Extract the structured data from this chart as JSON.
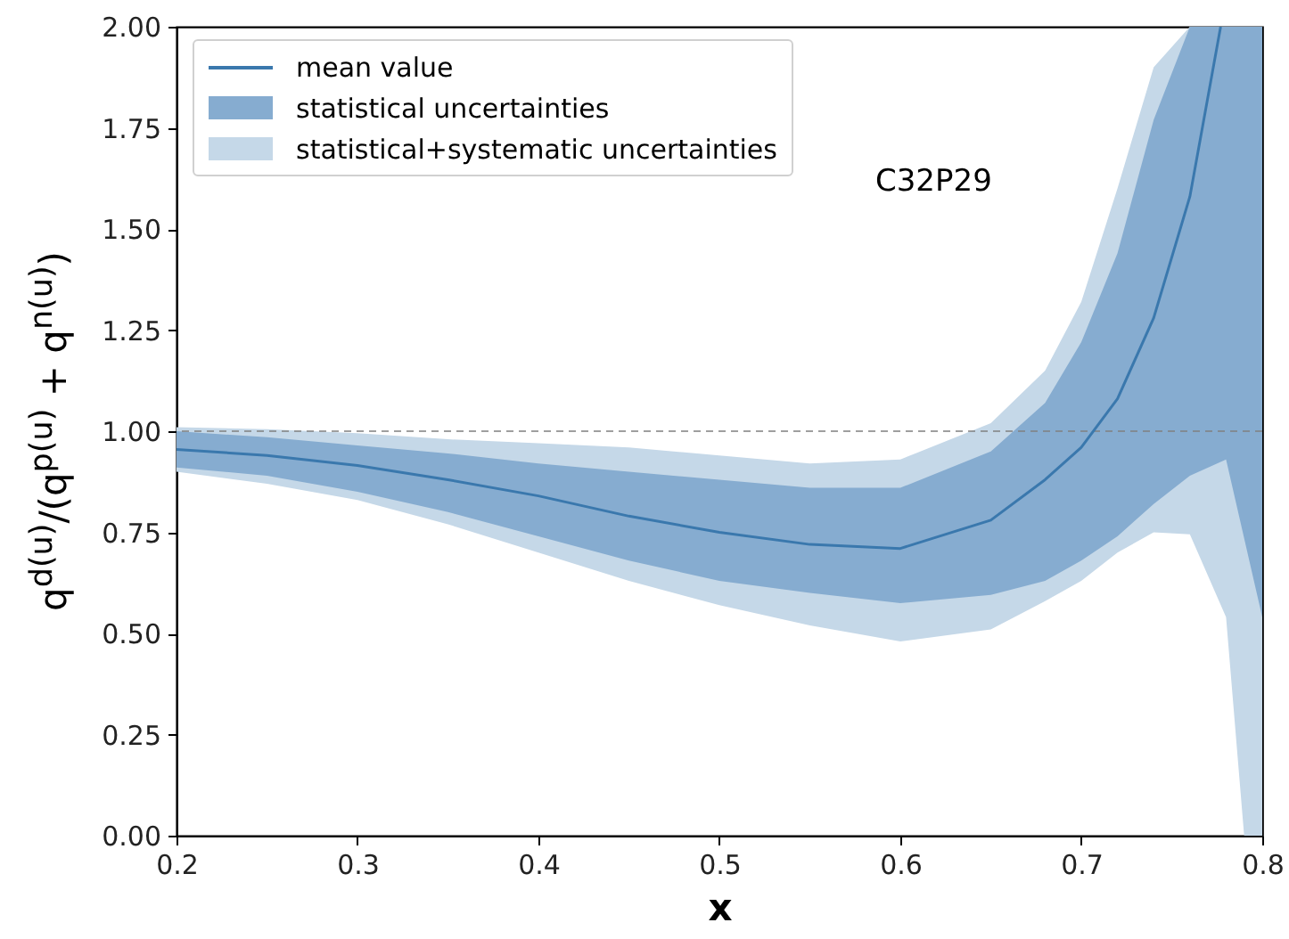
{
  "chart_data": {
    "type": "line",
    "xlabel": "x",
    "ylabel": "q$^{d(u)}$/(q$^{p(u)}$ + q$^{n(u)}$)",
    "xlim": [
      0.2,
      0.8
    ],
    "xticks": [
      0.2,
      0.3,
      0.4,
      0.5,
      0.6,
      0.7,
      0.8
    ],
    "ylim": [
      0,
      2
    ],
    "yticks": [
      {
        "value": 0,
        "label": "0.00"
      },
      {
        "value": 0.25,
        "label": "0.25"
      },
      {
        "value": 0.5,
        "label": "0.50"
      },
      {
        "value": 0.75,
        "label": "0.75"
      },
      {
        "value": 1,
        "label": "1.00"
      },
      {
        "value": 1.25,
        "label": "1.25"
      },
      {
        "value": 1.5,
        "label": "1.50"
      },
      {
        "value": 1.75,
        "label": "1.75"
      },
      {
        "value": 2,
        "label": "2.00"
      }
    ],
    "grid": false,
    "legend": "top left",
    "annotations": [
      "C32P29"
    ],
    "ref_lines": [
      {
        "axis": "y",
        "value": 1,
        "color": "#808080",
        "line_style": "dashed"
      }
    ],
    "series": [
      {
        "name": "mean value",
        "color": "#3a78ad",
        "x": [
          0.2,
          0.25,
          0.3,
          0.35,
          0.4,
          0.45,
          0.5,
          0.55,
          0.6,
          0.65,
          0.68,
          0.7,
          0.72,
          0.74,
          0.76,
          0.777
        ],
        "values": [
          0.955,
          0.94,
          0.915,
          0.88,
          0.84,
          0.79,
          0.75,
          0.72,
          0.71,
          0.78,
          0.88,
          0.96,
          1.08,
          1.28,
          1.58,
          2.0
        ]
      },
      {
        "name": "statistical uncertainties",
        "type": "area",
        "color": "#86acd0",
        "x": [
          0.2,
          0.25,
          0.3,
          0.35,
          0.4,
          0.45,
          0.5,
          0.55,
          0.6,
          0.65,
          0.68,
          0.7,
          0.72,
          0.74,
          0.76,
          0.78,
          0.8
        ],
        "values": [
          null,
          null,
          null,
          null,
          null,
          null,
          null,
          null,
          null,
          null,
          null,
          null,
          null,
          null,
          null,
          null,
          null
        ],
        "lower": [
          0.91,
          0.89,
          0.85,
          0.8,
          0.74,
          0.68,
          0.63,
          0.6,
          0.575,
          0.595,
          0.63,
          0.68,
          0.74,
          0.82,
          0.89,
          0.93,
          0.54
        ],
        "upper": [
          1.0,
          0.985,
          0.965,
          0.945,
          0.92,
          0.9,
          0.88,
          0.86,
          0.86,
          0.95,
          1.07,
          1.22,
          1.44,
          1.77,
          2.0,
          2.0,
          2.0
        ]
      },
      {
        "name": "statistical+systematic uncertainties",
        "type": "area",
        "color": "#c5d8e8",
        "x": [
          0.2,
          0.25,
          0.3,
          0.35,
          0.4,
          0.45,
          0.5,
          0.55,
          0.6,
          0.65,
          0.68,
          0.7,
          0.72,
          0.74,
          0.76,
          0.78,
          0.79,
          0.8
        ],
        "values": [
          null,
          null,
          null,
          null,
          null,
          null,
          null,
          null,
          null,
          null,
          null,
          null,
          null,
          null,
          null,
          null,
          null,
          null
        ],
        "lower": [
          0.9,
          0.87,
          0.83,
          0.77,
          0.7,
          0.63,
          0.57,
          0.52,
          0.48,
          0.51,
          0.58,
          0.63,
          0.7,
          0.75,
          0.745,
          0.54,
          0,
          0
        ],
        "upper": [
          1.01,
          1.005,
          0.995,
          0.98,
          0.97,
          0.96,
          0.94,
          0.92,
          0.93,
          1.02,
          1.15,
          1.32,
          1.6,
          1.9,
          2.0,
          2.0,
          2.0,
          2.0
        ]
      }
    ]
  }
}
